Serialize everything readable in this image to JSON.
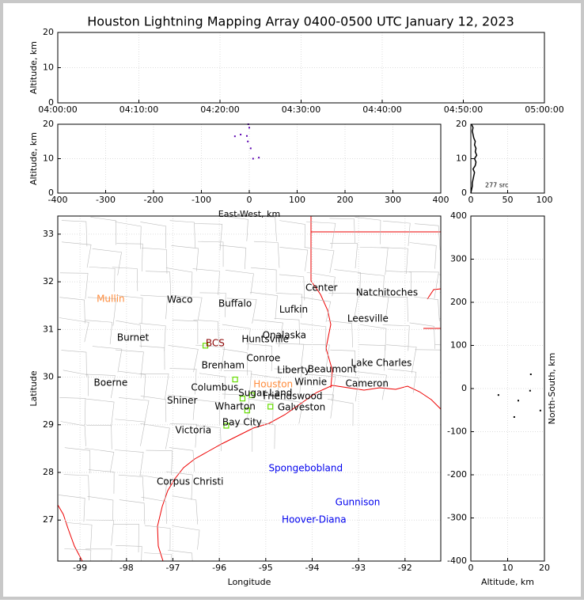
{
  "title": "Houston Lightning Mapping Array 0400-0500 UTC January 12, 2023",
  "chart_data": [
    {
      "type": "scatter",
      "ylabel": "Altitude, km",
      "xlim": [
        0,
        60
      ],
      "xticks": [
        {
          "value": 0,
          "label": "04:00:00"
        },
        {
          "value": 10,
          "label": "04:10:00"
        },
        {
          "value": 20,
          "label": "04:20:00"
        },
        {
          "value": 30,
          "label": "04:30:00"
        },
        {
          "value": 40,
          "label": "04:40:00"
        },
        {
          "value": 50,
          "label": "04:50:00"
        },
        {
          "value": 60,
          "label": "05:00:00"
        }
      ],
      "ylim": [
        0,
        20
      ],
      "yticks": [
        0,
        10,
        20
      ],
      "grid": true
    },
    {
      "type": "scatter",
      "xlabel": "East-West, km",
      "ylabel": "Altitude, km",
      "xlim": [
        -400,
        400
      ],
      "xticks": [
        -400,
        -300,
        -200,
        -100,
        0,
        100,
        200,
        300,
        400
      ],
      "ylim": [
        0,
        20
      ],
      "yticks": [
        0,
        10,
        20
      ],
      "grid": true,
      "color": "#5a00b0",
      "x": [
        -30,
        -18,
        -5,
        0,
        -3,
        3,
        8,
        20,
        -2
      ],
      "y": [
        16.5,
        17,
        16.6,
        19,
        15,
        13,
        10,
        10.3,
        20
      ]
    },
    {
      "type": "line",
      "annotation": "277 src",
      "xlim": [
        0,
        100
      ],
      "xticks": [
        0,
        50,
        100
      ],
      "ylim": [
        0,
        20
      ],
      "yticks": [
        0,
        10,
        20
      ],
      "grid": true,
      "color": "#000000",
      "x": [
        0,
        1,
        2,
        2,
        3,
        4,
        5,
        3,
        6,
        7,
        5,
        8,
        6,
        7,
        5,
        6,
        4,
        3,
        2,
        3,
        1
      ],
      "y": [
        0,
        1,
        2,
        3,
        4,
        5,
        6,
        7,
        8,
        9,
        10,
        11,
        12,
        13,
        14,
        15,
        16,
        17,
        18,
        19,
        20
      ]
    },
    {
      "type": "map",
      "xlabel": "Longitude",
      "ylabel": "Latitude",
      "xlim": [
        -99.48,
        -91.23
      ],
      "xticks": [
        -99,
        -98,
        -97,
        -96,
        -95,
        -94,
        -93,
        -92
      ],
      "ylim": [
        26.14,
        33.38
      ],
      "yticks": [
        27,
        28,
        29,
        30,
        31,
        32,
        33
      ],
      "grid": true,
      "color": "#66dd00",
      "x": [
        -95.66,
        -95.4,
        -95.3,
        -94.9,
        -95.85,
        -96.3,
        -95.5
      ],
      "y": [
        29.95,
        29.3,
        29.62,
        29.38,
        28.98,
        30.66,
        29.55
      ],
      "labels": [
        {
          "text": "Mullin",
          "lon": -98.34,
          "lat": 31.64,
          "color": "#ff8c3c"
        },
        {
          "text": "Waco",
          "lon": -96.85,
          "lat": 31.62,
          "color": "#000000"
        },
        {
          "text": "Buffalo",
          "lon": -95.66,
          "lat": 31.54,
          "color": "#000000"
        },
        {
          "text": "Center",
          "lon": -93.8,
          "lat": 31.87,
          "color": "#000000"
        },
        {
          "text": "Natchitoches",
          "lon": -92.39,
          "lat": 31.77,
          "color": "#000000"
        },
        {
          "text": "Lufkin",
          "lon": -94.4,
          "lat": 31.41,
          "color": "#000000"
        },
        {
          "text": "Leesville",
          "lon": -92.8,
          "lat": 31.22,
          "color": "#000000"
        },
        {
          "text": "Burnet",
          "lon": -97.86,
          "lat": 30.82,
          "color": "#000000"
        },
        {
          "text": "BCS",
          "lon": -96.09,
          "lat": 30.71,
          "color": "#8b0000"
        },
        {
          "text": "Huntsville",
          "lon": -95.01,
          "lat": 30.79,
          "color": "#000000"
        },
        {
          "text": "Onalaska",
          "lon": -94.6,
          "lat": 30.87,
          "color": "#000000"
        },
        {
          "text": "Conroe",
          "lon": -95.05,
          "lat": 30.39,
          "color": "#000000"
        },
        {
          "text": "Lake Charles",
          "lon": -92.51,
          "lat": 30.29,
          "color": "#000000"
        },
        {
          "text": "Brenham",
          "lon": -95.92,
          "lat": 30.24,
          "color": "#000000"
        },
        {
          "text": "Liberty",
          "lon": -94.4,
          "lat": 30.14,
          "color": "#000000"
        },
        {
          "text": "Beaumont",
          "lon": -93.57,
          "lat": 30.16,
          "color": "#000000"
        },
        {
          "text": "Boerne",
          "lon": -98.34,
          "lat": 29.88,
          "color": "#000000"
        },
        {
          "text": "Columbus",
          "lon": -96.1,
          "lat": 29.78,
          "color": "#000000"
        },
        {
          "text": "Winnie",
          "lon": -94.03,
          "lat": 29.89,
          "color": "#000000"
        },
        {
          "text": "Cameron",
          "lon": -92.82,
          "lat": 29.86,
          "color": "#000000"
        },
        {
          "text": "Houston",
          "lon": -94.84,
          "lat": 29.84,
          "color": "#ff8c3c"
        },
        {
          "text": "Sugar Land",
          "lon": -95.01,
          "lat": 29.66,
          "color": "#000000"
        },
        {
          "text": "Friendswood",
          "lon": -94.42,
          "lat": 29.59,
          "color": "#000000"
        },
        {
          "text": "Shiner",
          "lon": -96.8,
          "lat": 29.5,
          "color": "#000000"
        },
        {
          "text": "Wharton",
          "lon": -95.66,
          "lat": 29.38,
          "color": "#000000"
        },
        {
          "text": "Galveston",
          "lon": -94.23,
          "lat": 29.36,
          "color": "#000000"
        },
        {
          "text": "Bay City",
          "lon": -95.51,
          "lat": 29.05,
          "color": "#000000"
        },
        {
          "text": "Victoria",
          "lon": -96.56,
          "lat": 28.88,
          "color": "#000000"
        },
        {
          "text": "Spongebobland",
          "lon": -94.14,
          "lat": 28.08,
          "color": "#0000ee"
        },
        {
          "text": "Corpus Christi",
          "lon": -96.63,
          "lat": 27.8,
          "color": "#000000"
        },
        {
          "text": "Gunnison",
          "lon": -93.02,
          "lat": 27.37,
          "color": "#0000ee"
        },
        {
          "text": "Hoover-Diana",
          "lon": -93.96,
          "lat": 27.0,
          "color": "#0000ee"
        }
      ]
    },
    {
      "type": "scatter",
      "xlabel": "Altitude, km",
      "ylabel": "North-South, km",
      "xlim": [
        0,
        20
      ],
      "xticks": [
        0,
        10,
        20
      ],
      "ylim": [
        -400,
        400
      ],
      "yticks": [
        -400,
        -300,
        -200,
        -100,
        0,
        100,
        200,
        300,
        400
      ],
      "grid": true,
      "color": "#000000",
      "x": [
        16.3,
        12.9,
        18.9,
        7.5,
        16.1,
        11.8
      ],
      "y": [
        33,
        -28,
        -51,
        -15,
        -5,
        -66
      ]
    }
  ]
}
